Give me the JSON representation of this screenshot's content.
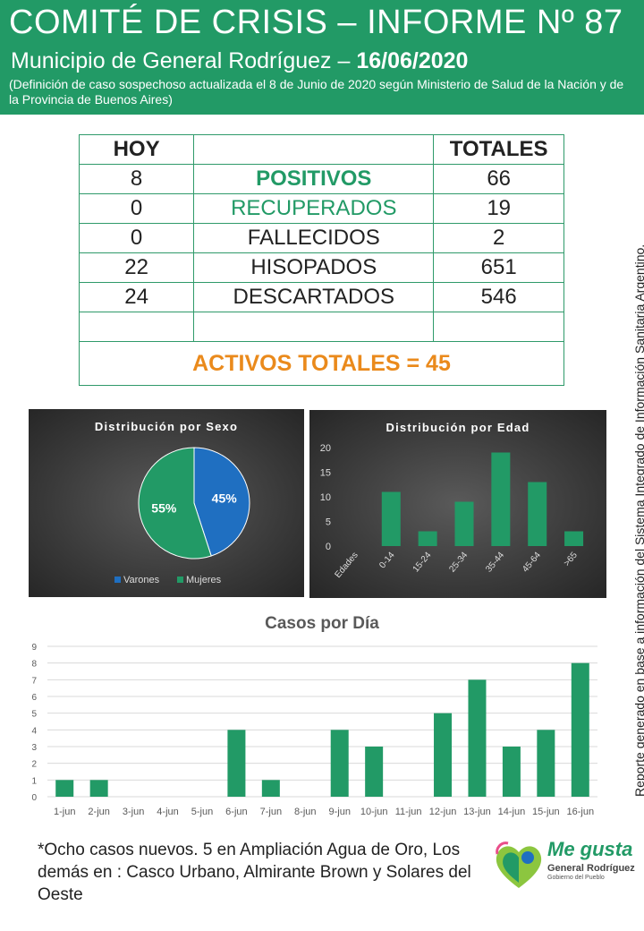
{
  "header": {
    "title": "COMITÉ DE CRISIS – INFORME Nº 87",
    "subtitle": "Municipio de General Rodríguez – ",
    "date": "16/06/2020",
    "note": "(Definición de caso sospechoso actualizada el 8 de Junio de 2020 según Ministerio de Salud de la Nación y de la Provincia de Buenos Aires)"
  },
  "side_note": "Reporte generado en base a información del Sistema Integrado de Información Sanitaria Argentino.",
  "table": {
    "header_today": "HOY",
    "header_totals": "TOTALES",
    "rows": [
      {
        "today": "8",
        "label": "POSITIVOS",
        "total": "66"
      },
      {
        "today": "0",
        "label": "RECUPERADOS",
        "total": "19"
      },
      {
        "today": "0",
        "label": "FALLECIDOS",
        "total": "2"
      },
      {
        "today": "22",
        "label": "HISOPADOS",
        "total": "651"
      },
      {
        "today": "24",
        "label": "DESCARTADOS",
        "total": "546"
      }
    ],
    "active_total": "ACTIVOS TOTALES = 45"
  },
  "chart_data": [
    {
      "type": "pie",
      "title": "Distribución  por Sexo",
      "categories": [
        "Varones",
        "Mujeres"
      ],
      "values": [
        45,
        55
      ],
      "labels": [
        "45%",
        "55%"
      ],
      "colors": [
        "#1f6fc1",
        "#229a66"
      ],
      "legend": "bottom"
    },
    {
      "type": "bar",
      "title": "Distribución  por  Edad",
      "categories": [
        "Edades",
        "0-14",
        "15-24",
        "25-34",
        "35-44",
        "45-64",
        ">65"
      ],
      "values": [
        0,
        11,
        3,
        9,
        19,
        13,
        3
      ],
      "ylim": [
        0,
        20
      ],
      "yticks": [
        "0",
        "5",
        "10",
        "15",
        "20"
      ],
      "color": "#229a66",
      "grid": false
    },
    {
      "type": "bar",
      "title": "Casos por Día",
      "categories": [
        "1-jun",
        "2-jun",
        "3-jun",
        "4-jun",
        "5-jun",
        "6-jun",
        "7-jun",
        "8-jun",
        "9-jun",
        "10-jun",
        "11-jun",
        "12-jun",
        "13-jun",
        "14-jun",
        "15-jun",
        "16-jun"
      ],
      "values": [
        1,
        1,
        0,
        0,
        0,
        4,
        1,
        0,
        4,
        3,
        0,
        5,
        7,
        3,
        4,
        8
      ],
      "ylim": [
        0,
        9
      ],
      "yticks": [
        "0",
        "1",
        "2",
        "3",
        "4",
        "5",
        "6",
        "7",
        "8",
        "9"
      ],
      "color": "#229a66",
      "grid": true
    }
  ],
  "footnote": "*Ocho casos nuevos. 5 en Ampliación Agua de Oro, Los demás en : Casco Urbano, Almirante Brown y Solares del Oeste",
  "logo": {
    "text": "Me gusta",
    "sub": "General Rodríguez",
    "sub2": "Gobierno del Pueblo",
    "icon": "heart-logo-icon"
  }
}
